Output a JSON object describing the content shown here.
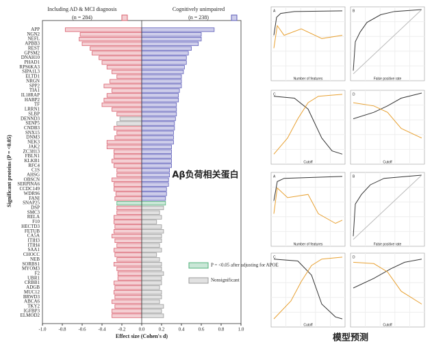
{
  "chart_data": {
    "type": "bar",
    "left_header": "Including AD & MCI diagnosis",
    "left_n": "(n = 284)",
    "right_header": "Cognitively unimpaired",
    "right_n": "(n = 238)",
    "y_label": "Significant proteins (P = <0.05)",
    "x_label": "Effect size (Cohen's d)",
    "categories": [
      "APP",
      "NGN2",
      "NEFL",
      "APBB3",
      "REST",
      "GPSM2",
      "DNAH10",
      "PHAD1",
      "RPS6KA3",
      "SIPA1L3",
      "ELTD1",
      "NRGN",
      "SPP2",
      "TIA1",
      "IL18RAP",
      "HABP2",
      "TF",
      "LRRN1",
      "SLBP",
      "DENND3",
      "SENP5",
      "CNDB3",
      "SNX15",
      "DNM3",
      "NEK3",
      "JAK2",
      "ZC3H13",
      "FBLN1",
      "KLKB1",
      "RFC4",
      "C1S",
      "AHSG",
      "OBSCN",
      "SERPINA6",
      "CCDC149",
      "WDR96",
      "FANI",
      "SNAP25",
      "DSP",
      "SMC3",
      "RELA",
      "F10",
      "HECTD3",
      "FETUB",
      "CA5A",
      "ITIH3",
      "ITIH4",
      "SAA1",
      "CHOCC",
      "NEB",
      "SORBS1",
      "MYOM3",
      "F2",
      "UBR1",
      "CRBB1",
      "ADGB",
      "MUC12",
      "BRWD3",
      "ABCA6",
      "TKY2",
      "IGFBP3",
      "ELMOD2"
    ],
    "series": [
      {
        "name": "Including AD & MCI diagnosis",
        "color": "#d9606e",
        "values": [
          -0.77,
          -0.62,
          -0.63,
          -0.6,
          -0.52,
          -0.5,
          -0.43,
          -0.4,
          -0.35,
          -0.3,
          -0.25,
          -0.32,
          -0.38,
          -0.3,
          -0.35,
          -0.38,
          -0.4,
          -0.3,
          -0.25,
          -0.22,
          -0.25,
          -0.28,
          -0.25,
          -0.27,
          -0.35,
          -0.35,
          -0.28,
          -0.28,
          -0.3,
          -0.28,
          -0.25,
          -0.25,
          -0.3,
          -0.28,
          -0.28,
          -0.26,
          -0.27,
          -0.25,
          -0.25,
          -0.25,
          -0.28,
          -0.28,
          -0.27,
          -0.28,
          -0.3,
          -0.27,
          -0.25,
          -0.28,
          -0.27,
          -0.25,
          -0.28,
          -0.25,
          -0.24,
          -0.24,
          -0.28,
          -0.27,
          -0.28,
          -0.27,
          -0.3,
          -0.27,
          -0.3,
          -0.3
        ],
        "colors": [
          "#d9606e",
          "#d9606e",
          "#d9606e",
          "#d9606e",
          "#d9606e",
          "#d9606e",
          "#d9606e",
          "#d9606e",
          "#d9606e",
          "#d9606e",
          "#d9606e",
          "#d9606e",
          "#d9606e",
          "#d9606e",
          "#d9606e",
          "#d9606e",
          "#d9606e",
          "#d9606e",
          "#d9606e",
          "#9a9a9a",
          "#9a9a9a",
          "#d9606e",
          "#d9606e",
          "#d9606e",
          "#d9606e",
          "#d9606e",
          "#d9606e",
          "#d9606e",
          "#d9606e",
          "#d9606e",
          "#d9606e",
          "#d9606e",
          "#d9606e",
          "#d9606e",
          "#d9606e",
          "#d9606e",
          "#d9606e",
          "#4fb07a",
          "#d9606e",
          "#d9606e",
          "#d9606e",
          "#d9606e",
          "#d9606e",
          "#d9606e",
          "#d9606e",
          "#d9606e",
          "#d9606e",
          "#d9606e",
          "#d9606e",
          "#d9606e",
          "#d9606e",
          "#d9606e",
          "#d9606e",
          "#d9606e",
          "#d9606e",
          "#d9606e",
          "#d9606e",
          "#d9606e",
          "#d9606e",
          "#d9606e",
          "#d9606e",
          "#d9606e"
        ]
      },
      {
        "name": "Cognitively unimpaired",
        "color": "#5a5ab8",
        "values": [
          0.73,
          0.6,
          0.6,
          0.57,
          0.5,
          0.47,
          0.45,
          0.45,
          0.43,
          0.42,
          0.4,
          0.4,
          0.4,
          0.38,
          0.37,
          0.37,
          0.35,
          0.35,
          0.35,
          0.34,
          0.33,
          0.33,
          0.32,
          0.32,
          0.32,
          0.3,
          0.3,
          0.3,
          0.3,
          0.3,
          0.28,
          0.28,
          0.27,
          0.27,
          0.25,
          0.25,
          0.24,
          0.24,
          0.22,
          0.18,
          0.2,
          0.15,
          0.2,
          0.22,
          0.2,
          0.2,
          0.18,
          0.2,
          0.15,
          0.18,
          0.2,
          0.2,
          0.22,
          0.2,
          0.2,
          0.18,
          0.2,
          0.2,
          0.18,
          0.22,
          0.2,
          0.22
        ],
        "colors": [
          "#5a5ab8",
          "#5a5ab8",
          "#5a5ab8",
          "#5a5ab8",
          "#5a5ab8",
          "#5a5ab8",
          "#5a5ab8",
          "#5a5ab8",
          "#5a5ab8",
          "#5a5ab8",
          "#5a5ab8",
          "#5a5ab8",
          "#5a5ab8",
          "#5a5ab8",
          "#5a5ab8",
          "#5a5ab8",
          "#5a5ab8",
          "#5a5ab8",
          "#5a5ab8",
          "#5a5ab8",
          "#5a5ab8",
          "#5a5ab8",
          "#5a5ab8",
          "#5a5ab8",
          "#5a5ab8",
          "#5a5ab8",
          "#5a5ab8",
          "#5a5ab8",
          "#5a5ab8",
          "#5a5ab8",
          "#5a5ab8",
          "#5a5ab8",
          "#5a5ab8",
          "#5a5ab8",
          "#5a5ab8",
          "#5a5ab8",
          "#5a5ab8",
          "#4fb07a",
          "#9a9a9a",
          "#9a9a9a",
          "#9a9a9a",
          "#9a9a9a",
          "#9a9a9a",
          "#9a9a9a",
          "#9a9a9a",
          "#9a9a9a",
          "#9a9a9a",
          "#9a9a9a",
          "#9a9a9a",
          "#9a9a9a",
          "#9a9a9a",
          "#9a9a9a",
          "#9a9a9a",
          "#9a9a9a",
          "#9a9a9a",
          "#9a9a9a",
          "#9a9a9a",
          "#9a9a9a",
          "#9a9a9a",
          "#9a9a9a",
          "#9a9a9a",
          "#9a9a9a"
        ]
      }
    ],
    "legend": [
      {
        "label": "P = <0.05 after adjusting for APOE",
        "color": "#4fb07a"
      },
      {
        "label": "Nonsignificant",
        "color": "#9a9a9a"
      }
    ],
    "xlim": [
      -1.0,
      1.0
    ],
    "xticks": [
      {
        "value": -1,
        "label": "-1.0"
      },
      -0.8,
      -0.6,
      -0.4,
      -0.2,
      {
        "value": 0,
        "label": "0.0"
      },
      0.2,
      0.4,
      0.6,
      0.8,
      {
        "value": 1,
        "label": "1.0"
      }
    ]
  },
  "annotation": "Aβ负荷相关蛋白",
  "caption": "模型预测",
  "panels": [
    {
      "label": "A",
      "xlabel": "Number of features"
    },
    {
      "label": "B",
      "xlabel": "False positive rate"
    },
    {
      "label": "C",
      "xlabel": "Cutoff"
    },
    {
      "label": "D",
      "xlabel": "Cutoff"
    },
    {
      "label": "A",
      "xlabel": "Number of features"
    },
    {
      "label": "B",
      "xlabel": "False positive rate"
    },
    {
      "label": "C",
      "xlabel": "Cutoff"
    },
    {
      "label": "D",
      "xlabel": "Cutoff"
    }
  ]
}
